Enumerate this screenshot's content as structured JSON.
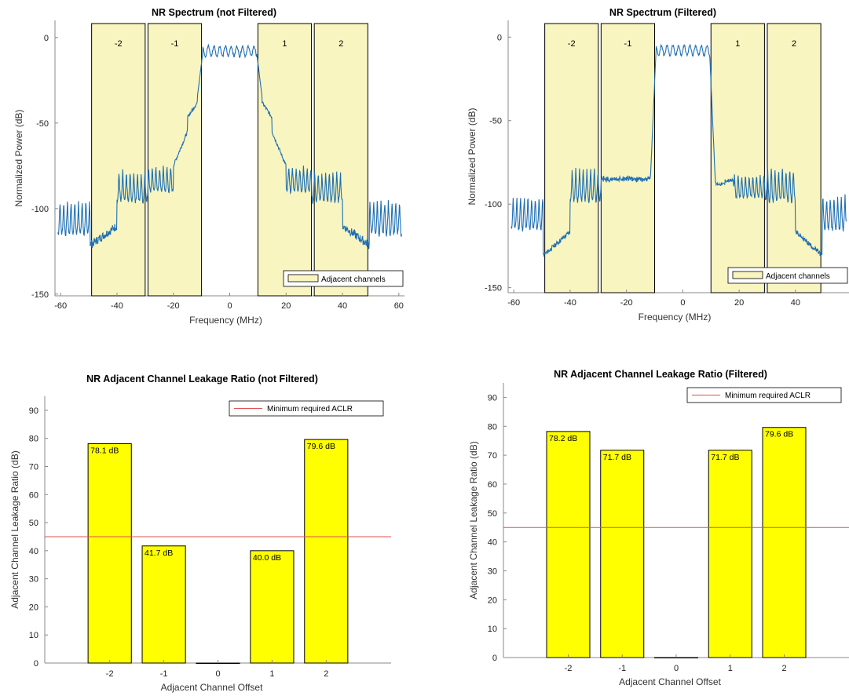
{
  "colors": {
    "spectrum_line": "#1f6fb4",
    "channel_fill": "#f8f5c0",
    "bar_fill": "#ffff00",
    "threshold_line": "#e05050"
  },
  "chart_data": [
    {
      "type": "line",
      "title": "NR Spectrum (not Filtered)",
      "xlabel": "Frequency (MHz)",
      "ylabel": "Normalized Power (dB)",
      "xlim": [
        -62,
        62
      ],
      "ylim": [
        -151,
        10
      ],
      "xticks": [
        -60,
        -40,
        -20,
        0,
        20,
        40,
        60
      ],
      "yticks": [
        0,
        -50,
        -100,
        -150
      ],
      "filtered": false,
      "legend": "Adjacent channels",
      "legend_position": "bottom-right",
      "channels": [
        {
          "label": "-2",
          "x0": -49,
          "x1": -30
        },
        {
          "label": "-1",
          "x0": -29,
          "x1": -10
        },
        {
          "label": "1",
          "x0": 10,
          "x1": 29
        },
        {
          "label": "2",
          "x0": 30,
          "x1": 49
        }
      ]
    },
    {
      "type": "line",
      "title": "NR Spectrum (Filtered)",
      "xlabel": "Frequency (MHz)",
      "ylabel": "Normalized Power (dB)",
      "xlim": [
        -62,
        59
      ],
      "ylim": [
        -153,
        10
      ],
      "xticks": [
        -60,
        -40,
        -20,
        0,
        20,
        40,
        60
      ],
      "yticks": [
        0,
        -50,
        -100,
        -150
      ],
      "filtered": true,
      "legend": "Adjacent channels",
      "legend_position": "bottom-right",
      "channels": [
        {
          "label": "-2",
          "x0": -49,
          "x1": -30
        },
        {
          "label": "-1",
          "x0": -29,
          "x1": -10
        },
        {
          "label": "1",
          "x0": 10,
          "x1": 29
        },
        {
          "label": "2",
          "x0": 30,
          "x1": 49
        }
      ]
    },
    {
      "type": "bar",
      "title": "NR Adjacent Channel Leakage Ratio (not Filtered)",
      "xlabel": "Adjacent Channel Offset",
      "ylabel": "Adjacent Channel Leakage Ratio (dB)",
      "categories": [
        "-2",
        "-1",
        "0",
        "1",
        "2"
      ],
      "values": [
        78.1,
        41.7,
        0,
        40.0,
        79.6
      ],
      "labels": [
        "78.1 dB",
        "41.7 dB",
        "",
        "40.0 dB",
        "79.6 dB"
      ],
      "xlim": [
        -3.2,
        3.2
      ],
      "ylim": [
        0,
        95
      ],
      "yticks": [
        0,
        10,
        20,
        30,
        40,
        50,
        60,
        70,
        80,
        90
      ],
      "threshold": 45,
      "legend": "Minimum required ACLR",
      "legend_position": "top-right"
    },
    {
      "type": "bar",
      "title": "NR Adjacent Channel Leakage Ratio (Filtered)",
      "xlabel": "Adjacent Channel Offset",
      "ylabel": "Adjacent Channel Leakage Ratio (dB)",
      "categories": [
        "-2",
        "-1",
        "0",
        "1",
        "2"
      ],
      "values": [
        78.2,
        71.7,
        0,
        71.7,
        79.6
      ],
      "labels": [
        "78.2 dB",
        "71.7 dB",
        "",
        "71.7 dB",
        "79.6 dB"
      ],
      "xlim": [
        -3.2,
        3.2
      ],
      "ylim": [
        0,
        95
      ],
      "yticks": [
        0,
        10,
        20,
        30,
        40,
        50,
        60,
        70,
        80,
        90
      ],
      "threshold": 45,
      "legend": "Minimum required ACLR",
      "legend_position": "top-right"
    }
  ]
}
